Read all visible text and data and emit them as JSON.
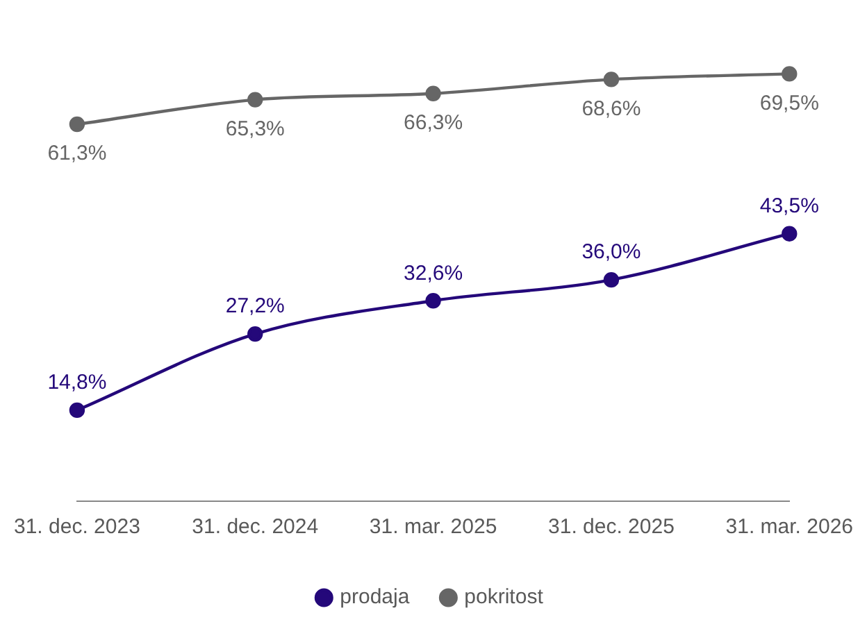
{
  "chart_data": {
    "type": "line",
    "categories": [
      "31. dec. 2023",
      "31. dec. 2024",
      "31. mar. 2025",
      "31. dec. 2025",
      "31. mar. 2026"
    ],
    "series": [
      {
        "name": "prodaja",
        "color": "#24087a",
        "values": [
          14.8,
          27.2,
          32.6,
          36.0,
          43.5
        ],
        "value_labels": [
          "14,8%",
          "27,2%",
          "32,6%",
          "36,0%",
          "43,5%"
        ]
      },
      {
        "name": "pokritost",
        "color": "#666666",
        "values": [
          61.3,
          65.3,
          66.3,
          68.6,
          69.5
        ],
        "value_labels": [
          "61,3%",
          "65,3%",
          "66,3%",
          "68,6%",
          "69,5%"
        ]
      }
    ],
    "tick_labels": "x",
    "legend": "bottom",
    "marker": "circle",
    "grid": false
  }
}
